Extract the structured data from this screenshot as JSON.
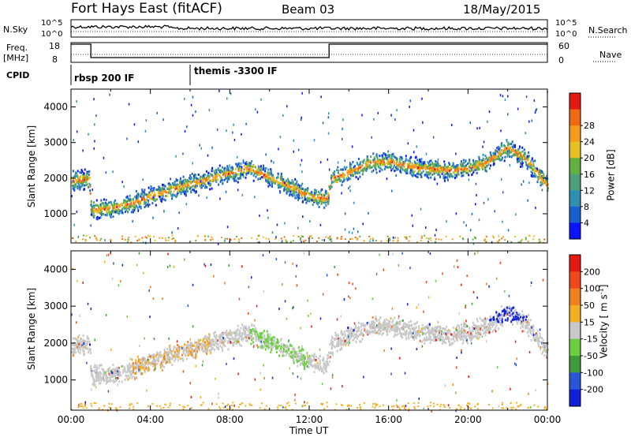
{
  "header": {
    "station": "Fort Hays East (fitACF)",
    "beam": "Beam 03",
    "date": "18/May/2015"
  },
  "top_panels": {
    "nsky_label": "N.Sky",
    "nsky_ticks": [
      "10^5",
      "10^0"
    ],
    "nsearch_label": "N.Search",
    "nsearch_ticks": [
      "10^5",
      "10^0"
    ],
    "freq_label_line1": "Freq.",
    "freq_label_line2": "[MHz]",
    "freq_ticks": [
      "18",
      "8"
    ],
    "nave_label": "Nave",
    "nave_ticks": [
      "60",
      "0"
    ],
    "cpid_label": "CPID",
    "cpid_entries": [
      {
        "start_hour": 0,
        "label": "rbsp 200 IF"
      },
      {
        "start_hour": 6,
        "label": "themis -3300 IF"
      }
    ]
  },
  "chart_data": [
    {
      "type": "heatmap",
      "name": "power",
      "ylabel": "Slant Range [km]",
      "xlim_hours": [
        0,
        24
      ],
      "ylim_km": [
        180,
        4500
      ],
      "yticks": [
        1000,
        2000,
        3000,
        4000
      ],
      "colorbar": {
        "label": "Power [dB]",
        "ticks": [
          "4",
          "8",
          "12",
          "16",
          "20",
          "24",
          "28"
        ],
        "colors": [
          "#0a14ff",
          "#1a5fd0",
          "#2f8fb0",
          "#4c9f7a",
          "#62b040",
          "#e8c020",
          "#f59a1c",
          "#f06a14",
          "#e41a10"
        ]
      },
      "echo_band_center_km": [
        [
          0,
          1950
        ],
        [
          0.9,
          2000
        ],
        [
          1.0,
          1150
        ],
        [
          2,
          1180
        ],
        [
          3,
          1320
        ],
        [
          4,
          1520
        ],
        [
          5,
          1700
        ],
        [
          6,
          1870
        ],
        [
          7,
          2020
        ],
        [
          8,
          2170
        ],
        [
          9,
          2300
        ],
        [
          10,
          2050
        ],
        [
          11,
          1800
        ],
        [
          12,
          1520
        ],
        [
          12.9,
          1450
        ],
        [
          13.1,
          2000
        ],
        [
          14,
          2200
        ],
        [
          15,
          2450
        ],
        [
          16,
          2500
        ],
        [
          17,
          2350
        ],
        [
          18,
          2300
        ],
        [
          19,
          2250
        ],
        [
          20,
          2300
        ],
        [
          21,
          2500
        ],
        [
          22,
          2900
        ],
        [
          23,
          2500
        ],
        [
          24,
          1800
        ]
      ]
    },
    {
      "type": "heatmap",
      "name": "velocity",
      "ylabel": "Slant Range [km]",
      "xlabel": "Time UT",
      "xlim_hours": [
        0,
        24
      ],
      "ylim_km": [
        180,
        4500
      ],
      "yticks": [
        1000,
        2000,
        3000,
        4000
      ],
      "xticks": [
        "00:00",
        "04:00",
        "08:00",
        "12:00",
        "16:00",
        "20:00",
        "00:00"
      ],
      "colorbar": {
        "label": "Velocity",
        "label_unit": "[ m s",
        "label_unit_sup": "-1",
        "label_unit_end": "]",
        "ticks": [
          "200",
          "100",
          "50",
          "15",
          "-15",
          "-50",
          "-100",
          "-200"
        ],
        "colors": [
          "#1020d8",
          "#2a55d8",
          "#3f9a3a",
          "#6ad040",
          "#c8c8c8",
          "#f0b020",
          "#f08020",
          "#f04818",
          "#e41a10"
        ]
      }
    }
  ]
}
